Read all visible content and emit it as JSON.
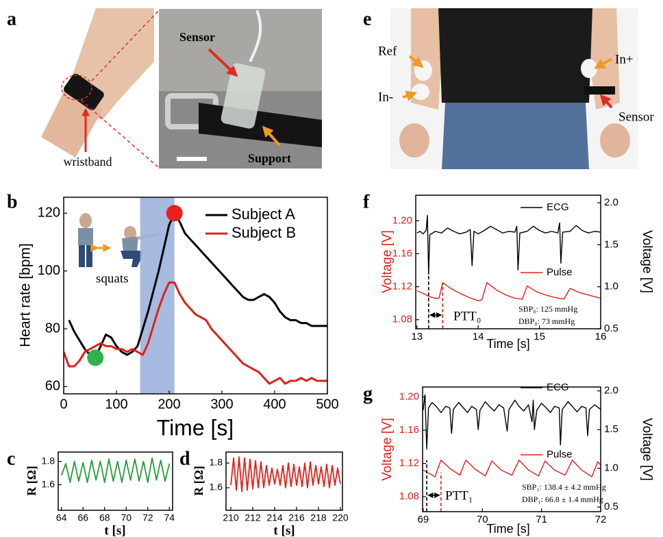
{
  "panels": [
    "a",
    "b",
    "c",
    "d",
    "e",
    "f",
    "g"
  ],
  "photos": [
    {
      "labels": [
        "wristband",
        "Sensor",
        "Support"
      ]
    },
    {
      "labels": [
        "Ref",
        "In-",
        "In+",
        "Sensor"
      ]
    }
  ],
  "chart_data": [
    {
      "type": "line",
      "xlabel": "Time [s]",
      "ylabel": "Heart rate [bpm]",
      "xlim": [
        0,
        500
      ],
      "xticks": [
        0,
        100,
        200,
        300,
        400,
        500
      ],
      "ylim": [
        57.5,
        125.5
      ],
      "yticks": [
        60,
        80,
        100,
        120
      ],
      "x": [
        0,
        10,
        20,
        30,
        40,
        50,
        60,
        70,
        80,
        90,
        100,
        110,
        120,
        130,
        140,
        150,
        160,
        170,
        180,
        190,
        200,
        210,
        220,
        230,
        240,
        250,
        260,
        270,
        280,
        290,
        300,
        310,
        320,
        330,
        340,
        350,
        360,
        370,
        380,
        390,
        400,
        410,
        420,
        430,
        440,
        450,
        460,
        470,
        480,
        490,
        500
      ],
      "series": [
        {
          "name": "Subject A",
          "color": "#000000",
          "values": [
            null,
            83,
            79,
            76,
            73,
            71,
            70,
            74,
            78,
            77,
            74,
            72,
            71,
            72,
            74,
            80,
            86,
            93,
            100,
            108,
            116,
            120,
            117,
            113,
            111,
            109,
            107,
            105,
            103,
            101,
            99,
            97,
            95,
            93,
            91,
            90,
            90,
            91,
            92,
            91,
            89,
            86,
            84,
            83,
            83,
            82,
            82,
            81,
            81,
            81,
            81
          ]
        },
        {
          "name": "Subject B",
          "color": "#e0201b",
          "values": [
            72,
            67,
            67,
            69,
            72,
            73,
            74,
            75,
            74,
            74,
            73,
            73,
            72,
            73,
            72,
            71,
            75,
            81,
            87,
            92,
            96,
            96,
            92,
            89,
            87,
            85,
            84,
            83,
            80,
            78,
            76,
            74,
            72,
            70,
            68,
            67,
            66,
            65,
            63,
            61,
            62,
            63,
            61,
            62,
            62,
            63,
            62,
            63,
            62,
            62,
            62
          ]
        }
      ],
      "shaded_region": [
        145,
        210
      ],
      "shaded_color": "#9db3dc",
      "highlight_points": [
        {
          "x": 60,
          "y": 70,
          "color": "#2fb34a"
        },
        {
          "x": 210,
          "y": 120,
          "color": "#e8211c"
        }
      ],
      "annotations": [
        "squats"
      ]
    },
    {
      "type": "line",
      "xlabel": "t [s]",
      "ylabel": "R [Ω]",
      "xlim": [
        63.7,
        74.3
      ],
      "xticks": [
        64,
        66,
        68,
        70,
        72,
        74
      ],
      "ylim": [
        1.38,
        1.88
      ],
      "yticks": [
        1.6,
        1.8
      ],
      "series": [
        {
          "color": "#2a9a3c",
          "x": [
            64.0,
            64.4,
            64.8,
            65.2,
            65.6,
            66.0,
            66.4,
            66.8,
            67.2,
            67.6,
            68.0,
            68.4,
            68.8,
            69.2,
            69.6,
            70.0,
            70.4,
            70.8,
            71.2,
            71.6,
            72.0,
            72.4,
            72.8,
            73.2,
            73.6,
            74.0
          ],
          "values": [
            1.68,
            1.78,
            1.62,
            1.8,
            1.63,
            1.79,
            1.62,
            1.81,
            1.64,
            1.8,
            1.62,
            1.82,
            1.63,
            1.8,
            1.62,
            1.81,
            1.64,
            1.82,
            1.63,
            1.8,
            1.62,
            1.83,
            1.64,
            1.81,
            1.63,
            1.78
          ]
        }
      ]
    },
    {
      "type": "line",
      "xlabel": "t [s]",
      "ylabel": "R [Ω]",
      "xlim": [
        209.56,
        220.19
      ],
      "xticks": [
        210,
        212,
        214,
        216,
        218,
        220
      ],
      "ylim": [
        1.417,
        1.889
      ],
      "yticks": [
        1.6,
        1.8
      ],
      "series": [
        {
          "color": "#e0201b",
          "x": [
            210,
            210.25,
            210.5,
            210.75,
            211,
            211.25,
            211.5,
            211.75,
            212,
            212.25,
            212.5,
            212.75,
            213,
            213.25,
            213.5,
            213.75,
            214,
            214.25,
            214.5,
            214.75,
            215,
            215.25,
            215.5,
            215.75,
            216,
            216.25,
            216.5,
            216.75,
            217,
            217.25,
            217.5,
            217.75,
            218,
            218.25,
            218.5,
            218.75,
            219,
            219.25,
            219.5,
            219.75,
            220
          ],
          "values": [
            1.62,
            1.84,
            1.58,
            1.85,
            1.57,
            1.84,
            1.58,
            1.83,
            1.59,
            1.82,
            1.6,
            1.81,
            1.6,
            1.78,
            1.62,
            1.76,
            1.63,
            1.75,
            1.62,
            1.78,
            1.6,
            1.8,
            1.61,
            1.79,
            1.62,
            1.77,
            1.61,
            1.8,
            1.6,
            1.81,
            1.62,
            1.78,
            1.63,
            1.77,
            1.61,
            1.79,
            1.6,
            1.78,
            1.62,
            1.76,
            1.63
          ]
        }
      ]
    },
    {
      "type": "line",
      "xlabel": "Time [s]",
      "ylabel": "Voltage [V]",
      "y2label": "Voltage [V]",
      "y_color": "#e0201b",
      "xlim": [
        12.98,
        16.0
      ],
      "xticks": [
        13,
        14,
        15,
        16
      ],
      "ylim": [
        1.069,
        1.231
      ],
      "yticks": [
        1.08,
        1.12,
        1.16,
        {
          "value": 1.2,
          "label": "1.20"
        }
      ],
      "y2lim": [
        0.5,
        2.09
      ],
      "y2ticks": [
        0.5,
        {
          "value": 1,
          "label": "1.0"
        },
        1.5,
        {
          "value": 2,
          "label": "2.0"
        }
      ],
      "series": [
        {
          "name": "ECG",
          "color": "#000000",
          "axis": "y2",
          "x": [
            13.0,
            13.05,
            13.1,
            13.15,
            13.17,
            13.19,
            13.21,
            13.3,
            13.4,
            13.5,
            13.6,
            13.7,
            13.8,
            13.87,
            13.9,
            13.93,
            14.0,
            14.1,
            14.2,
            14.3,
            14.4,
            14.5,
            14.6,
            14.63,
            14.65,
            14.68,
            14.8,
            14.9,
            15.0,
            15.1,
            15.2,
            15.3,
            15.33,
            15.35,
            15.38,
            15.5,
            15.6,
            15.7,
            15.8,
            15.9,
            16.0
          ],
          "values": [
            1.64,
            1.66,
            1.63,
            1.67,
            1.85,
            1.15,
            1.62,
            1.66,
            1.64,
            1.7,
            1.66,
            1.63,
            1.65,
            1.68,
            1.25,
            1.66,
            1.63,
            1.67,
            1.72,
            1.68,
            1.64,
            1.66,
            1.65,
            1.72,
            1.2,
            1.64,
            1.66,
            1.72,
            1.67,
            1.64,
            1.66,
            1.64,
            1.76,
            1.28,
            1.65,
            1.66,
            1.73,
            1.67,
            1.64,
            1.66,
            1.65
          ]
        },
        {
          "name": "Pulse",
          "color": "#e0201b",
          "x": [
            13.0,
            13.1,
            13.2,
            13.3,
            13.36,
            13.42,
            13.55,
            13.7,
            13.85,
            14.0,
            14.06,
            14.14,
            14.3,
            14.45,
            14.6,
            14.72,
            14.8,
            14.95,
            15.1,
            15.25,
            15.4,
            15.5,
            15.65,
            15.8,
            16.0
          ],
          "values": [
            1.115,
            1.112,
            1.108,
            1.106,
            1.106,
            1.125,
            1.118,
            1.112,
            1.107,
            1.103,
            1.104,
            1.125,
            1.116,
            1.11,
            1.106,
            1.105,
            1.121,
            1.114,
            1.11,
            1.107,
            1.105,
            1.118,
            1.113,
            1.11,
            1.106
          ]
        }
      ],
      "ptt_markers": [
        {
          "x": 13.19,
          "color": "#000000"
        },
        {
          "x": 13.42,
          "color": "#e0201b"
        }
      ],
      "annotations": [
        "SBP₀: 125 mmHg",
        "DBP₀: 73  mmHg",
        "PTT₀"
      ]
    },
    {
      "type": "line",
      "xlabel": "Time [s]",
      "ylabel": "Voltage [V]",
      "y2label": "Voltage [V]",
      "y_color": "#e0201b",
      "xlim": [
        68.99,
        72.0
      ],
      "xticks": [
        69,
        70,
        71,
        72
      ],
      "ylim": [
        1.062,
        1.212
      ],
      "yticks": [
        1.08,
        1.12,
        1.16,
        {
          "value": 1.2,
          "label": "1.20"
        }
      ],
      "y2lim": [
        0.44,
        2.05
      ],
      "y2ticks": [
        0.5,
        {
          "value": 1,
          "label": "1.0"
        },
        1.5,
        {
          "value": 2,
          "label": "2.0"
        }
      ],
      "series": [
        {
          "name": "ECG",
          "color": "#000000",
          "axis": "y2",
          "x": [
            69.0,
            69.03,
            69.06,
            69.09,
            69.15,
            69.22,
            69.3,
            69.38,
            69.45,
            69.48,
            69.51,
            69.6,
            69.68,
            69.75,
            69.82,
            69.9,
            69.93,
            69.96,
            70.05,
            70.12,
            70.2,
            70.28,
            70.36,
            70.42,
            70.45,
            70.55,
            70.62,
            70.7,
            70.78,
            70.84,
            70.86,
            70.88,
            70.92,
            71.0,
            71.08,
            71.15,
            71.22,
            71.3,
            71.32,
            71.35,
            71.45,
            71.52,
            71.6,
            71.68,
            71.75,
            71.78,
            71.81,
            71.9,
            72.0
          ],
          "values": [
            1.75,
            1.95,
            1.25,
            1.78,
            1.85,
            1.8,
            1.72,
            1.8,
            1.78,
            1.45,
            1.76,
            1.85,
            1.78,
            1.72,
            1.8,
            1.76,
            1.5,
            1.75,
            1.86,
            1.8,
            1.74,
            1.82,
            1.78,
            1.48,
            1.76,
            1.88,
            1.8,
            1.74,
            1.82,
            1.6,
            1.88,
            1.5,
            1.75,
            1.84,
            1.78,
            1.72,
            1.8,
            1.78,
            1.3,
            1.76,
            1.86,
            1.8,
            1.73,
            1.8,
            1.78,
            1.42,
            1.76,
            1.82,
            1.76
          ]
        },
        {
          "name": "Pulse",
          "color": "#e0201b",
          "x": [
            69.0,
            69.1,
            69.2,
            69.3,
            69.45,
            69.62,
            69.72,
            69.88,
            70.05,
            70.16,
            70.32,
            70.5,
            70.62,
            70.78,
            70.95,
            71.06,
            71.22,
            71.4,
            71.52,
            71.68,
            71.85,
            71.95,
            72.0
          ],
          "values": [
            1.112,
            1.108,
            1.104,
            1.124,
            1.114,
            1.106,
            1.124,
            1.113,
            1.105,
            1.123,
            1.112,
            1.106,
            1.124,
            1.112,
            1.105,
            1.123,
            1.112,
            1.106,
            1.124,
            1.112,
            1.104,
            1.122,
            1.118
          ]
        }
      ],
      "ptt_markers": [
        {
          "x": 69.06,
          "color": "#000000"
        },
        {
          "x": 69.3,
          "color": "#e0201b"
        }
      ],
      "annotations": [
        "SBP₁: 138.4 ± 4.2 mmHg",
        "DBP₁: 66.8 ± 1.4  mmHg",
        "PTT₁"
      ]
    }
  ]
}
